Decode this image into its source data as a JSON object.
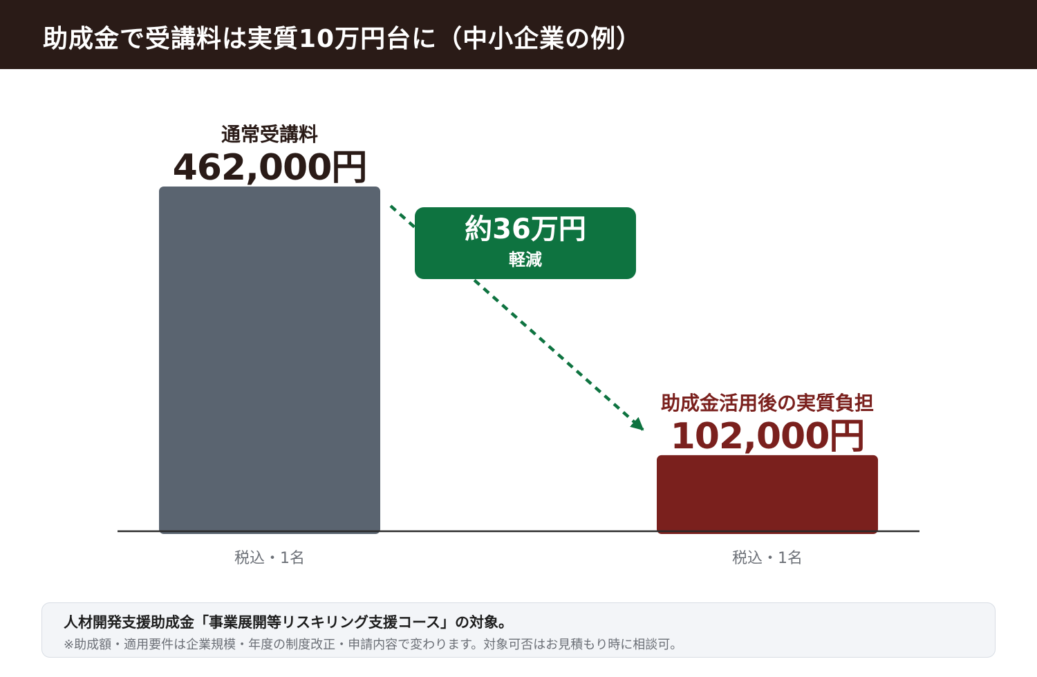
{
  "header": {
    "title": "助成金で受講料は実質10万円台に（中小企業の例）"
  },
  "chart_data": {
    "type": "bar",
    "categories": [
      "通常受講料",
      "助成金活用後の実質負担"
    ],
    "values": [
      462000,
      102000
    ],
    "value_labels": [
      "462,000円",
      "102,000円"
    ],
    "tick_labels": [
      "税込・1名",
      "税込・1名"
    ],
    "colors": [
      "#5a6470",
      "#7a201d"
    ],
    "category_label_colors": [
      "#2a1b17",
      "#7a201d"
    ],
    "ylim": [
      0,
      462000
    ],
    "annotation": {
      "main": "約36万円",
      "sub": "軽減",
      "color": "#0e7340"
    }
  },
  "note": {
    "main": "人材開発支援助成金「事業展開等リスキリング支援コース」の対象。",
    "sub": "※助成額・適用要件は企業規模・年度の制度改正・申請内容で変わります。対象可否はお見積もり時に相談可。"
  }
}
